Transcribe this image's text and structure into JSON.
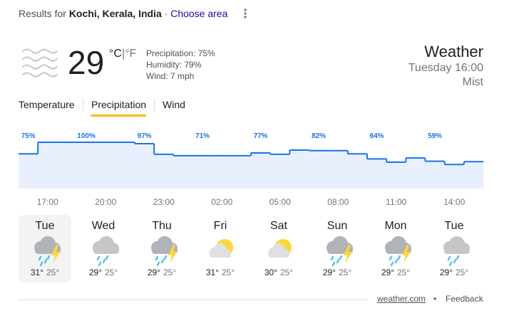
{
  "header": {
    "prefix": "Results for",
    "location": "Kochi, Kerala, India",
    "separator": "·",
    "link": "Choose area"
  },
  "current": {
    "temperature": "29",
    "unit_c": "°C",
    "unit_sep": "|",
    "unit_f": "°F",
    "details": [
      "Precipitation: 75%",
      "Humidity: 79%",
      "Wind: 7 mph"
    ],
    "title": "Weather",
    "time": "Tuesday 16:00",
    "condition": "Mist"
  },
  "tabs": [
    "Temperature",
    "Precipitation",
    "Wind"
  ],
  "chart_data": {
    "type": "step",
    "categories": [
      null,
      "17:00",
      null,
      null,
      "20:00",
      null,
      null,
      "23:00",
      null,
      null,
      "02:00",
      null,
      null,
      "05:00",
      null,
      null,
      "08:00",
      null,
      null,
      "11:00",
      null,
      null,
      "14:00",
      null
    ],
    "values": [
      75,
      100,
      100,
      100,
      100,
      100,
      97,
      74,
      71,
      71,
      71,
      71,
      77,
      74,
      83,
      82,
      82,
      75,
      64,
      57,
      66,
      59,
      52,
      58
    ],
    "value_labels": [
      "75%",
      null,
      null,
      "100%",
      null,
      null,
      "97%",
      null,
      null,
      "71%",
      null,
      null,
      "77%",
      null,
      null,
      "82%",
      null,
      null,
      "64%",
      null,
      null,
      "59%",
      null,
      null
    ],
    "ylim": [
      0,
      100
    ],
    "color": "#1a73e8",
    "fill": "#e8f0fe"
  },
  "days": [
    {
      "name": "Tue",
      "high": "31°",
      "low": "25°",
      "icon": "storm"
    },
    {
      "name": "Wed",
      "high": "29°",
      "low": "25°",
      "icon": "rain"
    },
    {
      "name": "Thu",
      "high": "29°",
      "low": "25°",
      "icon": "storm"
    },
    {
      "name": "Fri",
      "high": "31°",
      "low": "25°",
      "icon": "partly-sunny"
    },
    {
      "name": "Sat",
      "high": "30°",
      "low": "25°",
      "icon": "partly-sunny"
    },
    {
      "name": "Sun",
      "high": "29°",
      "low": "25°",
      "icon": "storm"
    },
    {
      "name": "Mon",
      "high": "29°",
      "low": "25°",
      "icon": "storm"
    },
    {
      "name": "Tue",
      "high": "29°",
      "low": "25°",
      "icon": "rain"
    }
  ],
  "footer": {
    "source": "weather.com",
    "bullet": "•",
    "feedback": "Feedback"
  }
}
